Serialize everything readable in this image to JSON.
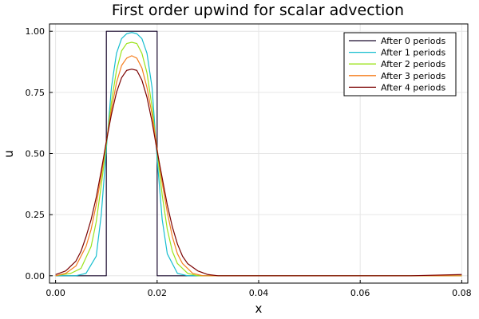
{
  "chart_data": {
    "type": "line",
    "title": "First order upwind for scalar advection",
    "xlabel": "x",
    "ylabel": "u",
    "xlim": [
      -0.0012,
      0.0812
    ],
    "ylim": [
      -0.03,
      1.03
    ],
    "xticks": [
      0.0,
      0.02,
      0.04,
      0.06,
      0.08
    ],
    "xtick_labels": [
      "0.00",
      "0.02",
      "0.04",
      "0.06",
      "0.08"
    ],
    "yticks": [
      0.0,
      0.25,
      0.5,
      0.75,
      1.0
    ],
    "ytick_labels": [
      "0.00",
      "0.25",
      "0.50",
      "0.75",
      "1.00"
    ],
    "grid": true,
    "legend_position": "top-right",
    "series": [
      {
        "name": "After 0 periods",
        "color": "#1a0a2e",
        "x": [
          0.0,
          0.00999,
          0.01,
          0.02,
          0.02001,
          0.08
        ],
        "y": [
          0.0,
          0.0,
          1.0,
          1.0,
          0.0,
          0.0
        ]
      },
      {
        "name": "After 1 periods",
        "color": "#17becf",
        "x": [
          0.0,
          0.004,
          0.006,
          0.008,
          0.009,
          0.01,
          0.011,
          0.012,
          0.013,
          0.014,
          0.015,
          0.016,
          0.017,
          0.018,
          0.019,
          0.02,
          0.021,
          0.022,
          0.024,
          0.026,
          0.028,
          0.03,
          0.035,
          0.04,
          0.05,
          0.06,
          0.07,
          0.08
        ],
        "y": [
          0.0,
          0.0,
          0.01,
          0.08,
          0.25,
          0.52,
          0.77,
          0.91,
          0.97,
          0.99,
          0.995,
          0.99,
          0.97,
          0.91,
          0.77,
          0.48,
          0.23,
          0.09,
          0.01,
          0.0,
          0.0,
          0.0,
          0.0,
          0.0,
          0.0,
          0.0,
          0.0,
          0.0
        ]
      },
      {
        "name": "After 2 periods",
        "color": "#9be31a",
        "x": [
          0.0,
          0.003,
          0.005,
          0.007,
          0.008,
          0.009,
          0.01,
          0.011,
          0.012,
          0.013,
          0.014,
          0.015,
          0.016,
          0.017,
          0.018,
          0.019,
          0.02,
          0.021,
          0.022,
          0.023,
          0.024,
          0.026,
          0.028,
          0.03,
          0.035,
          0.04,
          0.05,
          0.06,
          0.07,
          0.08
        ],
        "y": [
          0.0,
          0.01,
          0.03,
          0.12,
          0.22,
          0.37,
          0.54,
          0.71,
          0.84,
          0.92,
          0.95,
          0.955,
          0.95,
          0.91,
          0.83,
          0.69,
          0.51,
          0.33,
          0.19,
          0.1,
          0.05,
          0.01,
          0.0,
          0.0,
          0.0,
          0.0,
          0.0,
          0.0,
          0.0,
          0.0
        ]
      },
      {
        "name": "After 3 periods",
        "color": "#f57f20",
        "x": [
          0.0,
          0.002,
          0.004,
          0.006,
          0.007,
          0.008,
          0.009,
          0.01,
          0.011,
          0.012,
          0.013,
          0.014,
          0.015,
          0.016,
          0.017,
          0.018,
          0.019,
          0.02,
          0.021,
          0.022,
          0.023,
          0.024,
          0.025,
          0.027,
          0.029,
          0.031,
          0.035,
          0.04,
          0.05,
          0.06,
          0.07,
          0.08
        ],
        "y": [
          0.0,
          0.01,
          0.04,
          0.12,
          0.19,
          0.29,
          0.41,
          0.55,
          0.68,
          0.79,
          0.86,
          0.89,
          0.9,
          0.89,
          0.85,
          0.77,
          0.66,
          0.52,
          0.38,
          0.26,
          0.16,
          0.09,
          0.05,
          0.01,
          0.0,
          0.0,
          0.0,
          0.0,
          0.0,
          0.0,
          0.0,
          0.0
        ]
      },
      {
        "name": "After 4 periods",
        "color": "#7a0000",
        "x": [
          0.0,
          0.002,
          0.004,
          0.005,
          0.006,
          0.007,
          0.008,
          0.009,
          0.01,
          0.011,
          0.012,
          0.013,
          0.014,
          0.015,
          0.016,
          0.017,
          0.018,
          0.019,
          0.02,
          0.021,
          0.022,
          0.023,
          0.024,
          0.025,
          0.026,
          0.028,
          0.03,
          0.032,
          0.035,
          0.04,
          0.05,
          0.06,
          0.07,
          0.08
        ],
        "y": [
          0.005,
          0.02,
          0.06,
          0.1,
          0.16,
          0.23,
          0.32,
          0.43,
          0.55,
          0.66,
          0.75,
          0.81,
          0.84,
          0.845,
          0.84,
          0.8,
          0.73,
          0.63,
          0.51,
          0.4,
          0.29,
          0.2,
          0.13,
          0.08,
          0.05,
          0.02,
          0.005,
          0.0,
          0.0,
          0.0,
          0.0,
          0.0,
          0.0,
          0.005
        ]
      }
    ]
  }
}
